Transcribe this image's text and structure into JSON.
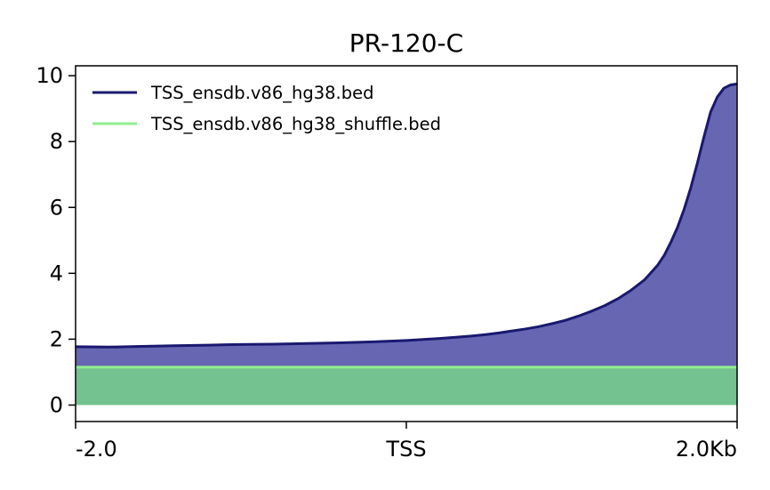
{
  "chart_data": {
    "type": "area",
    "title": "PR-120-C",
    "xlabel": "",
    "ylabel": "",
    "x_tick_labels": [
      "-2.0",
      "TSS",
      "2.0Kb"
    ],
    "x": [
      0,
      5,
      10,
      15,
      20,
      25,
      30,
      35,
      40,
      45,
      50,
      55,
      60,
      62,
      64,
      66,
      68,
      70,
      72,
      74,
      76,
      78,
      80,
      82,
      84,
      86,
      88,
      89,
      90,
      91,
      92,
      93,
      94,
      95,
      96,
      97,
      98,
      99,
      100
    ],
    "xlim": [
      0,
      100
    ],
    "y_ticks": [
      0,
      2,
      4,
      6,
      8,
      10
    ],
    "ylim": [
      -0.5,
      10.3
    ],
    "grid": false,
    "legend_position": "top-left",
    "series": [
      {
        "name": "TSS_ensdb.v86_hg38.bed",
        "color": "#191970",
        "fill_color": "#6666b3",
        "values": [
          1.77,
          1.76,
          1.78,
          1.8,
          1.82,
          1.84,
          1.85,
          1.87,
          1.89,
          1.92,
          1.96,
          2.02,
          2.1,
          2.14,
          2.19,
          2.25,
          2.31,
          2.38,
          2.47,
          2.57,
          2.7,
          2.85,
          3.02,
          3.23,
          3.49,
          3.8,
          4.25,
          4.55,
          4.95,
          5.4,
          5.95,
          6.6,
          7.35,
          8.15,
          8.9,
          9.35,
          9.62,
          9.72,
          9.75
        ]
      },
      {
        "name": "TSS_ensdb.v86_hg38_shuffle.bed",
        "color": "#90ee90",
        "fill_color": "#74c290",
        "values": [
          1.15,
          1.15,
          1.15,
          1.15,
          1.15,
          1.15,
          1.15,
          1.15,
          1.15,
          1.15,
          1.15,
          1.15,
          1.15,
          1.15,
          1.15,
          1.15,
          1.15,
          1.15,
          1.15,
          1.15,
          1.15,
          1.15,
          1.15,
          1.15,
          1.15,
          1.15,
          1.15,
          1.15,
          1.15,
          1.15,
          1.15,
          1.15,
          1.15,
          1.15,
          1.15,
          1.15,
          1.15,
          1.15,
          1.15
        ]
      }
    ]
  }
}
